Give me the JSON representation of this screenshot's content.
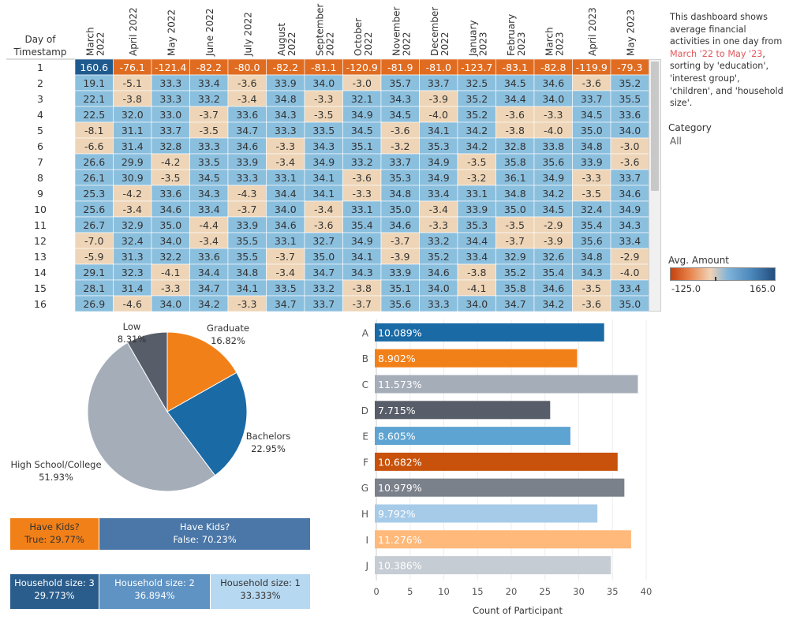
{
  "colors": {
    "neg": "#eed5b7",
    "pos": "#8bbfde",
    "big_neg": "#e06c21",
    "big_pos": "#1f5a8e",
    "bar_text": "#333333"
  },
  "description": {
    "line1": "This dashboard shows average financial activities in one day from",
    "period": "March '22 to May '23",
    "line2": ", sorting by 'education', 'interest group', 'children', and 'household size'."
  },
  "filter": {
    "label": "Category",
    "value": "All"
  },
  "legend": {
    "title": "Avg. Amount",
    "min": "-125.0",
    "max": "165.0"
  },
  "chart_data": [
    {
      "type": "heatmap",
      "row_header": "Day of Timestamp",
      "columns": [
        {
          "a": "March",
          "b": "2022"
        },
        {
          "a": "April 2022",
          "b": ""
        },
        {
          "a": "May 2022",
          "b": ""
        },
        {
          "a": "June 2022",
          "b": ""
        },
        {
          "a": "July 2022",
          "b": ""
        },
        {
          "a": "August",
          "b": "2022"
        },
        {
          "a": "September",
          "b": "2022"
        },
        {
          "a": "October",
          "b": "2022"
        },
        {
          "a": "November",
          "b": "2022"
        },
        {
          "a": "December",
          "b": "2022"
        },
        {
          "a": "January",
          "b": "2023"
        },
        {
          "a": "February",
          "b": "2023"
        },
        {
          "a": "March",
          "b": "2023"
        },
        {
          "a": "April 2023",
          "b": ""
        },
        {
          "a": "May 2023",
          "b": ""
        }
      ],
      "rows": [
        "1",
        "2",
        "3",
        "4",
        "5",
        "6",
        "7",
        "8",
        "9",
        "10",
        "11",
        "12",
        "13",
        "14",
        "15",
        "16"
      ],
      "values": [
        [
          "160.6",
          "-76.1",
          "-121.4",
          "-82.2",
          "-80.0",
          "-82.2",
          "-81.1",
          "-120.9",
          "-81.9",
          "-81.0",
          "-123.7",
          "-83.1",
          "-82.8",
          "-119.9",
          "-79.3"
        ],
        [
          "19.1",
          "-5.1",
          "33.3",
          "33.4",
          "-3.6",
          "33.9",
          "34.0",
          "-3.0",
          "35.7",
          "33.7",
          "32.5",
          "34.5",
          "34.6",
          "-3.6",
          "35.2"
        ],
        [
          "22.1",
          "-3.8",
          "33.3",
          "33.2",
          "-3.4",
          "34.8",
          "-3.3",
          "32.1",
          "34.3",
          "-3.9",
          "35.2",
          "34.4",
          "34.0",
          "33.7",
          "35.5"
        ],
        [
          "22.5",
          "32.0",
          "33.0",
          "-3.7",
          "33.6",
          "34.3",
          "-3.5",
          "34.9",
          "34.5",
          "-4.0",
          "35.2",
          "-3.6",
          "-3.3",
          "34.5",
          "33.6"
        ],
        [
          "-8.1",
          "31.1",
          "33.7",
          "-3.5",
          "34.7",
          "33.3",
          "33.5",
          "34.5",
          "-3.6",
          "34.1",
          "34.2",
          "-3.8",
          "-4.0",
          "35.0",
          "34.0"
        ],
        [
          "-6.6",
          "31.4",
          "32.8",
          "33.3",
          "34.6",
          "-3.3",
          "34.3",
          "35.1",
          "-3.2",
          "35.3",
          "34.2",
          "32.8",
          "33.8",
          "34.8",
          "-3.0"
        ],
        [
          "26.6",
          "29.9",
          "-4.2",
          "33.5",
          "33.9",
          "-3.4",
          "34.9",
          "33.2",
          "33.7",
          "34.9",
          "-3.5",
          "35.8",
          "35.6",
          "33.9",
          "-3.6"
        ],
        [
          "26.1",
          "30.9",
          "-3.5",
          "34.5",
          "33.3",
          "33.1",
          "34.1",
          "-3.6",
          "35.3",
          "34.9",
          "-3.2",
          "36.1",
          "34.9",
          "-3.3",
          "33.7"
        ],
        [
          "25.3",
          "-4.2",
          "33.6",
          "34.3",
          "-4.3",
          "34.4",
          "34.1",
          "-3.3",
          "34.8",
          "33.4",
          "33.1",
          "34.8",
          "34.2",
          "-3.5",
          "34.6"
        ],
        [
          "25.6",
          "-3.4",
          "34.6",
          "33.4",
          "-3.7",
          "34.0",
          "-3.4",
          "33.1",
          "35.0",
          "-3.4",
          "33.9",
          "35.0",
          "34.5",
          "32.4",
          "34.9"
        ],
        [
          "26.7",
          "32.9",
          "35.0",
          "-4.4",
          "33.9",
          "34.6",
          "-3.6",
          "35.4",
          "34.6",
          "-3.3",
          "35.3",
          "-3.5",
          "-2.9",
          "35.4",
          "34.3"
        ],
        [
          "-7.0",
          "32.4",
          "34.0",
          "-3.4",
          "35.5",
          "33.1",
          "32.7",
          "34.9",
          "-3.7",
          "33.2",
          "34.4",
          "-3.7",
          "-3.9",
          "35.6",
          "33.4"
        ],
        [
          "-5.9",
          "31.3",
          "32.2",
          "33.6",
          "35.5",
          "-3.7",
          "35.0",
          "34.1",
          "-3.9",
          "35.2",
          "33.4",
          "32.9",
          "32.6",
          "34.8",
          "-2.9"
        ],
        [
          "29.1",
          "32.3",
          "-4.1",
          "34.4",
          "34.8",
          "-3.4",
          "34.7",
          "34.3",
          "33.9",
          "34.6",
          "-3.8",
          "35.2",
          "35.4",
          "34.3",
          "-4.0"
        ],
        [
          "28.1",
          "31.4",
          "-3.3",
          "34.7",
          "34.1",
          "33.5",
          "33.2",
          "-3.8",
          "35.1",
          "34.0",
          "-4.1",
          "35.8",
          "34.6",
          "-3.5",
          "33.4"
        ],
        [
          "26.9",
          "-4.6",
          "34.0",
          "34.2",
          "-3.3",
          "34.7",
          "33.7",
          "-3.7",
          "35.6",
          "33.3",
          "34.0",
          "34.7",
          "34.2",
          "-3.6",
          "35.0"
        ]
      ]
    },
    {
      "type": "pie",
      "slices": [
        {
          "label": "Graduate",
          "value": 16.82,
          "display": "16.82%",
          "color": "#f28018"
        },
        {
          "label": "Bachelors",
          "value": 22.95,
          "display": "22.95%",
          "color": "#1a6aa6"
        },
        {
          "label": "High School/College",
          "value": 51.93,
          "display": "51.93%",
          "color": "#a5adb8"
        },
        {
          "label": "Low",
          "value": 8.31,
          "display": "8.31%",
          "color": "#575d69"
        }
      ]
    },
    {
      "type": "bar",
      "xlabel": "Count of Participant",
      "xlim": [
        0,
        40
      ],
      "xticks": [
        0,
        5,
        10,
        15,
        20,
        25,
        30,
        35,
        40
      ],
      "categories": [
        "A",
        "B",
        "C",
        "D",
        "E",
        "F",
        "G",
        "H",
        "I",
        "J"
      ],
      "values": [
        34,
        30,
        39,
        26,
        29,
        36,
        37,
        33,
        38,
        35
      ],
      "labels": [
        "10.089%",
        "8.902%",
        "11.573%",
        "7.715%",
        "8.605%",
        "10.682%",
        "10.979%",
        "9.792%",
        "11.276%",
        "10.386%"
      ],
      "colors": [
        "#1a6aa6",
        "#f28018",
        "#a5adb8",
        "#575d69",
        "#5ea4d2",
        "#c8520b",
        "#7b818b",
        "#a6cbe8",
        "#ffb97a",
        "#c6ccd4"
      ]
    }
  ],
  "kids": [
    {
      "line1": "Have Kids?",
      "line2": "True: 29.77%",
      "share": 29.77,
      "color": "#f28018"
    },
    {
      "line1": "Have Kids?",
      "line2": "False: 70.23%",
      "share": 70.23,
      "color": "#4a77a8"
    }
  ],
  "household": [
    {
      "line1": "Household size:  3",
      "line2": "29.773%",
      "share": 29.773,
      "color": "#2a5d8c"
    },
    {
      "line1": "Household size:  2",
      "line2": "36.894%",
      "share": 36.894,
      "color": "#5e93c4"
    },
    {
      "line1": "Household size:  1",
      "line2": "33.333%",
      "share": 33.333,
      "color": "#b6d8f0"
    }
  ]
}
